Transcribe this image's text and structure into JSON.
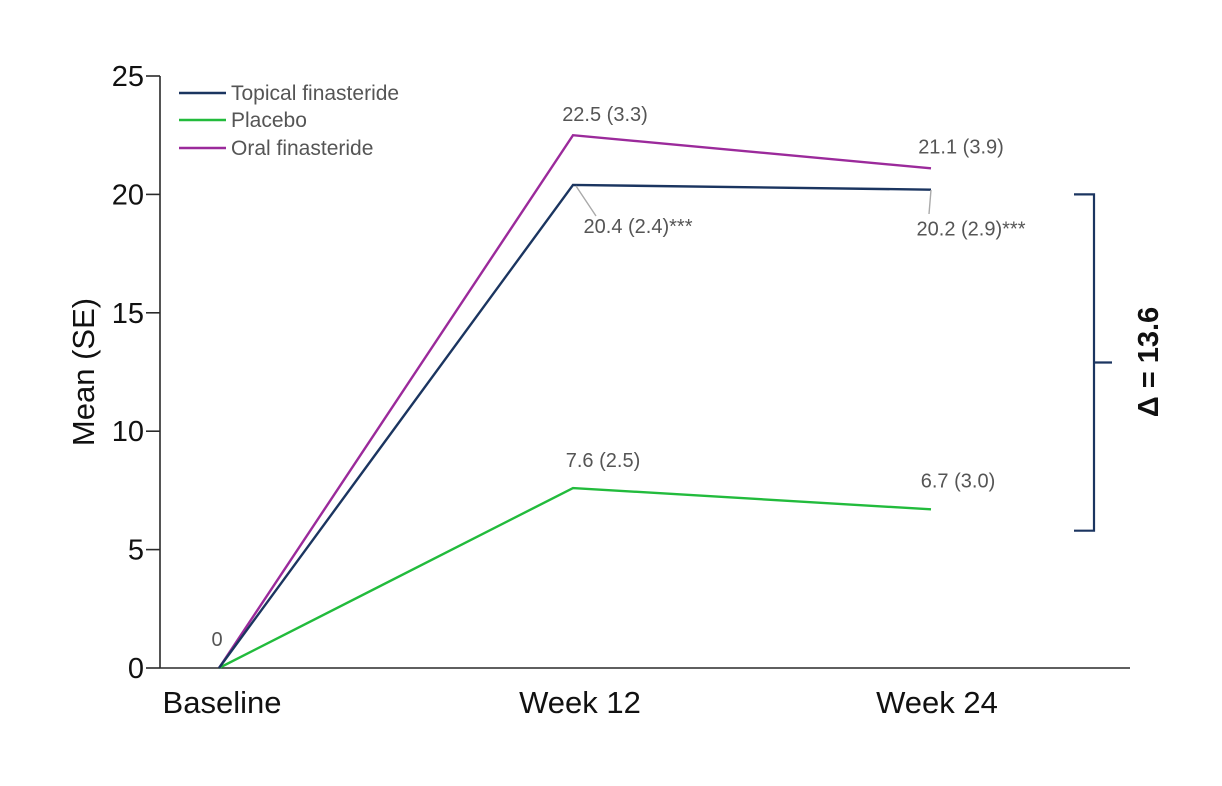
{
  "chart_data": {
    "type": "line",
    "title": "",
    "xlabel": "",
    "ylabel": "Mean (SE)",
    "categories": [
      "Baseline",
      "Week 12",
      "Week 24"
    ],
    "ylim": [
      0,
      25
    ],
    "yticks": [
      0,
      5,
      10,
      15,
      20,
      25
    ],
    "grid": false,
    "legend_position": "top-left",
    "series": [
      {
        "name": "Topical finasteride",
        "color": "#1b3560",
        "values": [
          0,
          20.4,
          20.2
        ],
        "labels": [
          "0",
          "20.4 (2.4)***",
          "20.2 (2.9)***"
        ]
      },
      {
        "name": "Placebo",
        "color": "#22bb3c",
        "values": [
          0,
          7.6,
          6.7
        ],
        "labels": [
          "",
          "7.6 (2.5)",
          "6.7 (3.0)"
        ]
      },
      {
        "name": "Oral finasteride",
        "color": "#9b2a9b",
        "values": [
          0,
          22.5,
          21.1
        ],
        "labels": [
          "",
          "22.5 (3.3)",
          "21.1 (3.9)"
        ]
      }
    ],
    "annotation": {
      "text": "Δ = 13.6",
      "from_value": 20.0,
      "to_value": 5.8,
      "color": "#1b3560"
    }
  }
}
